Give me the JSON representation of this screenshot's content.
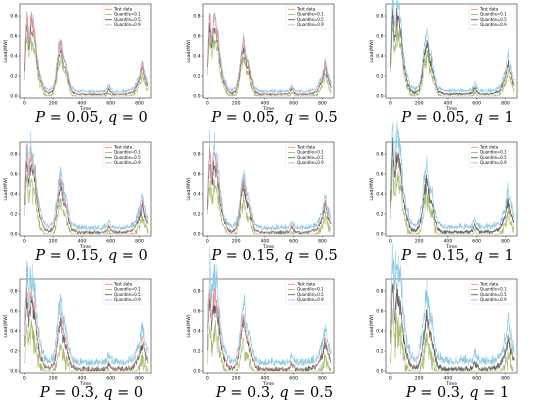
{
  "chart_data": [
    {
      "type": "line",
      "p": "0.05",
      "q": "0",
      "caption": "P = 0.05, q = 0",
      "band": 0.1,
      "anchor": "pred",
      "ylabel": "Load(MW)",
      "xlabel": "Time",
      "xticks": [
        "0",
        "200",
        "400",
        "600",
        "800"
      ],
      "yticks": [
        "0.0",
        "0.2",
        "0.4",
        "0.6",
        "0.8"
      ],
      "xlim": [
        -30,
        880
      ],
      "ylim": [
        -0.02,
        0.92
      ],
      "legend": {
        "position": "top-right",
        "entries": [
          "Test data",
          "Quantile=0.1",
          "Quantile=0.5",
          "Quantile=0.9"
        ]
      }
    },
    {
      "type": "line",
      "p": "0.05",
      "q": "0.5",
      "caption": "P = 0.05, q = 0.5",
      "band": 0.1,
      "anchor": "pred",
      "ylabel": "Load(MW)",
      "xlabel": "Time",
      "xticks": [
        "0",
        "200",
        "400",
        "600",
        "800"
      ],
      "yticks": [
        "0.0",
        "0.2",
        "0.4",
        "0.6",
        "0.8"
      ],
      "xlim": [
        -30,
        880
      ],
      "ylim": [
        -0.02,
        0.92
      ],
      "legend": {
        "position": "top-right",
        "entries": [
          "Test data",
          "Quantile=0.1",
          "Quantile=0.5",
          "Quantile=0.9"
        ]
      }
    },
    {
      "type": "line",
      "p": "0.05",
      "q": "1",
      "caption": "P = 0.05, q = 1",
      "band": 0.12,
      "anchor": "test",
      "ylabel": "Load(MW)",
      "xlabel": "Time",
      "xticks": [
        "0",
        "200",
        "400",
        "600",
        "800"
      ],
      "yticks": [
        "0.0",
        "0.2",
        "0.4",
        "0.6",
        "0.8"
      ],
      "xlim": [
        -30,
        880
      ],
      "ylim": [
        -0.02,
        0.92
      ],
      "legend": {
        "position": "top-right",
        "entries": [
          "Test data",
          "Quantile=0.1",
          "Quantile=0.5",
          "Quantile=0.9"
        ]
      }
    },
    {
      "type": "line",
      "p": "0.15",
      "q": "0",
      "caption": "P = 0.15, q = 0",
      "band": 0.16,
      "anchor": "pred",
      "ylabel": "Load(MW)",
      "xlabel": "Time",
      "xticks": [
        "0",
        "200",
        "400",
        "600",
        "800"
      ],
      "yticks": [
        "0.0",
        "0.2",
        "0.4",
        "0.6",
        "0.8"
      ],
      "xlim": [
        -30,
        880
      ],
      "ylim": [
        -0.02,
        0.92
      ],
      "legend": {
        "position": "top-right",
        "entries": [
          "Test data",
          "Quantile=0.1",
          "Quantile=0.5",
          "Quantile=0.9"
        ]
      }
    },
    {
      "type": "line",
      "p": "0.15",
      "q": "0.5",
      "caption": "P = 0.15, q = 0.5",
      "band": 0.16,
      "anchor": "pred",
      "ylabel": "Load(MW)",
      "xlabel": "Time",
      "xticks": [
        "0",
        "200",
        "400",
        "600",
        "800"
      ],
      "yticks": [
        "0.0",
        "0.2",
        "0.4",
        "0.6",
        "0.8"
      ],
      "xlim": [
        -30,
        880
      ],
      "ylim": [
        -0.02,
        0.92
      ],
      "legend": {
        "position": "top-right",
        "entries": [
          "Test data",
          "Quantile=0.1",
          "Quantile=0.5",
          "Quantile=0.9"
        ]
      }
    },
    {
      "type": "line",
      "p": "0.15",
      "q": "1",
      "caption": "P = 0.15, q = 1",
      "band": 0.18,
      "anchor": "test",
      "ylabel": "Load(MW)",
      "xlabel": "Time",
      "xticks": [
        "0",
        "200",
        "400",
        "600",
        "800"
      ],
      "yticks": [
        "0.0",
        "0.2",
        "0.4",
        "0.6",
        "0.8"
      ],
      "xlim": [
        -30,
        880
      ],
      "ylim": [
        -0.02,
        0.92
      ],
      "legend": {
        "position": "top-right",
        "entries": [
          "Test data",
          "Quantile=0.1",
          "Quantile=0.5",
          "Quantile=0.9"
        ]
      }
    },
    {
      "type": "line",
      "p": "0.3",
      "q": "0",
      "caption": "P = 0.3, q = 0",
      "band": 0.24,
      "anchor": "pred",
      "ylabel": "Load(MW)",
      "xlabel": "Time",
      "xticks": [
        "0",
        "200",
        "400",
        "600",
        "800"
      ],
      "yticks": [
        "0.0",
        "0.2",
        "0.4",
        "0.6",
        "0.8"
      ],
      "xlim": [
        -30,
        880
      ],
      "ylim": [
        -0.02,
        0.92
      ],
      "legend": {
        "position": "top-right",
        "entries": [
          "Test data",
          "Quantile=0.1",
          "Quantile=0.5",
          "Quantile=0.9"
        ]
      }
    },
    {
      "type": "line",
      "p": "0.3",
      "q": "0.5",
      "caption": "P = 0.3, q = 0.5",
      "band": 0.24,
      "anchor": "pred",
      "ylabel": "Load(MW)",
      "xlabel": "Time",
      "xticks": [
        "0",
        "200",
        "400",
        "600",
        "800"
      ],
      "yticks": [
        "0.0",
        "0.2",
        "0.4",
        "0.6",
        "0.8"
      ],
      "xlim": [
        -30,
        880
      ],
      "ylim": [
        -0.02,
        0.92
      ],
      "legend": {
        "position": "top-right",
        "entries": [
          "Test data",
          "Quantile=0.1",
          "Quantile=0.5",
          "Quantile=0.9"
        ]
      }
    },
    {
      "type": "line",
      "p": "0.3",
      "q": "1",
      "caption": "P = 0.3, q = 1",
      "band": 0.28,
      "anchor": "test",
      "ylabel": "Load(MW)",
      "xlabel": "Time",
      "xticks": [
        "0",
        "200",
        "400",
        "600",
        "800"
      ],
      "yticks": [
        "0.0",
        "0.2",
        "0.4",
        "0.6",
        "0.8"
      ],
      "xlim": [
        -30,
        880
      ],
      "ylim": [
        -0.02,
        0.92
      ],
      "legend": {
        "position": "top-right",
        "entries": [
          "Test data",
          "Quantile=0.1",
          "Quantile=0.5",
          "Quantile=0.9"
        ]
      }
    }
  ],
  "series_colors": {
    "test": "#ee8a8a",
    "q01": "#a7bb6c",
    "q05": "#5f5f5f",
    "q09": "#86c7e2"
  },
  "load_profile": {
    "x": [
      0,
      15,
      30,
      45,
      60,
      75,
      90,
      110,
      140,
      170,
      200,
      220,
      240,
      255,
      270,
      290,
      310,
      330,
      370,
      420,
      480,
      540,
      570,
      585,
      600,
      620,
      660,
      700,
      760,
      800,
      820,
      835,
      850,
      870
    ],
    "y": [
      0.3,
      0.85,
      0.55,
      0.8,
      0.7,
      0.6,
      0.35,
      0.18,
      0.06,
      0.03,
      0.06,
      0.2,
      0.46,
      0.55,
      0.38,
      0.3,
      0.15,
      0.05,
      0.02,
      0.02,
      0.02,
      0.02,
      0.03,
      0.09,
      0.05,
      0.02,
      0.02,
      0.02,
      0.05,
      0.18,
      0.34,
      0.22,
      0.14,
      0.08
    ]
  }
}
